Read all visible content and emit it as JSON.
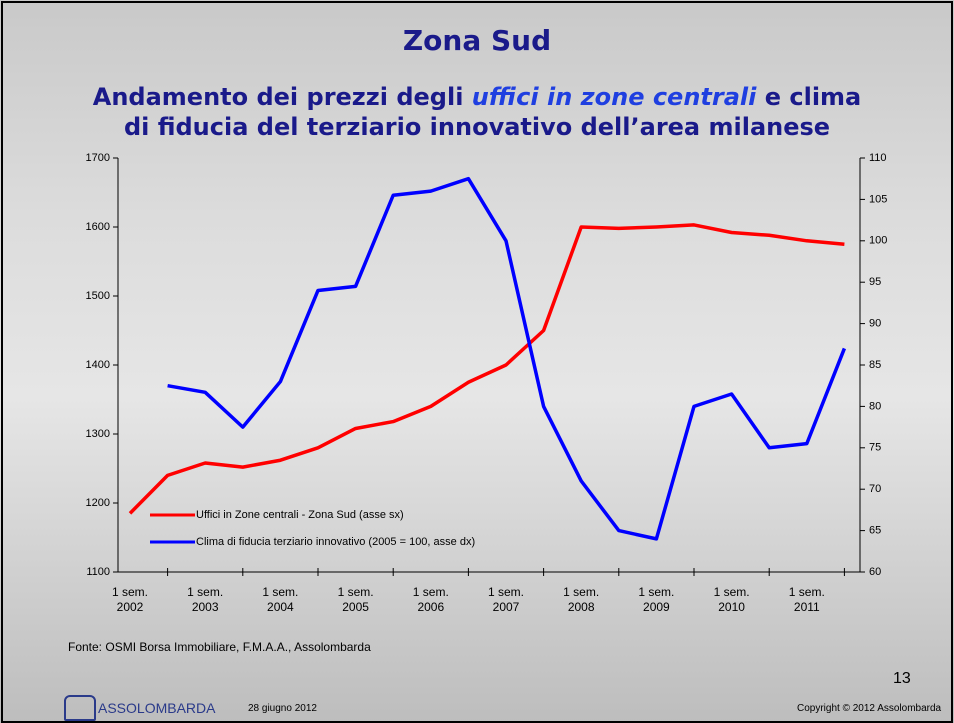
{
  "slide": {
    "subtitle": {
      "before": "Andamento dei prezzi degli",
      "emphasis": "uffici in zone centrali",
      "after": "e clima",
      "line2": "di fiducia del terziario innovativo dell’area milanese"
    },
    "source": "Fonte: OSMI Borsa Immobiliare, F.M.A.A., Assolombarda",
    "page_number": "13",
    "logo": "ASSOLOMBARDA",
    "date": "28 giugno 2012",
    "copyright": "Copyright © 2012 Assolombarda"
  },
  "chart_data": {
    "type": "line",
    "title": "Zona Sud",
    "categories": [
      "1 sem.\n2002",
      null,
      "1 sem.\n2003",
      null,
      "1 sem.\n2004",
      null,
      "1 sem.\n2005",
      null,
      "1 sem.\n2006",
      null,
      "1 sem.\n2007",
      null,
      "1 sem.\n2008",
      null,
      "1 sem.\n2009",
      null,
      "1 sem.\n2010",
      null,
      "1 sem.\n2011",
      null
    ],
    "series": [
      {
        "name": "Uffici in Zone centrali  - Zona Sud (asse sx)",
        "color": "#ff0000",
        "axis": "y",
        "values": [
          1185,
          1240,
          1258,
          1252,
          1262,
          1280,
          1308,
          1318,
          1340,
          1375,
          1400,
          1450,
          1600,
          1598,
          1600,
          1603,
          1592,
          1588,
          1580,
          1575
        ]
      },
      {
        "name": "Clima di fiducia terziario innovativo (2005 = 100, asse dx)",
        "color": "#0000ff",
        "axis": "y2",
        "values": [
          null,
          82.5,
          81.7,
          77.5,
          83,
          94,
          94.5,
          105.5,
          106,
          107.5,
          100,
          80,
          71,
          65,
          64,
          80,
          81.5,
          75,
          75.5,
          87
        ]
      }
    ],
    "ylim": [
      1100,
      1700
    ],
    "yticks": [
      1100,
      1200,
      1300,
      1400,
      1500,
      1600,
      1700
    ],
    "y2lim": [
      60,
      110
    ],
    "y2ticks": [
      60,
      65,
      70,
      75,
      80,
      85,
      90,
      95,
      100,
      105,
      110
    ]
  }
}
